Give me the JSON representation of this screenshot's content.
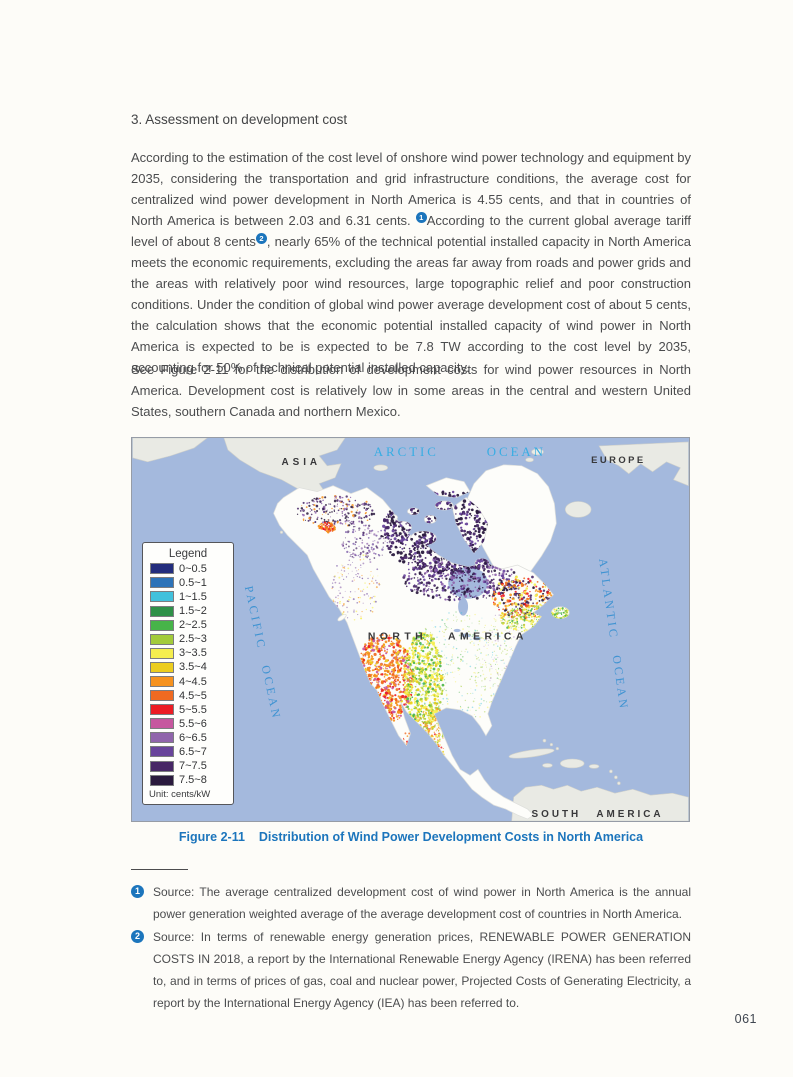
{
  "page": {
    "number": "061",
    "heading": "3. Assessment on development cost",
    "para1": {
      "seg1": "According to the estimation of the cost level of onshore wind power technology and equipment by 2035, considering the transportation and grid infrastructure conditions, the average cost for centralized wind power development in North America is 4.55 cents, and that in countries of North America is between 2.03 and 6.31 cents. ",
      "marker1": "1",
      "seg2": "According to the current global average tariff level of about 8 cents",
      "marker2": "2",
      "seg3": ", nearly 65% of the technical potential installed capacity in North America meets the economic requirements, excluding the areas far away from roads and power grids and the areas with relatively poor wind resources, large topographic relief and poor construction conditions. Under the condition of global wind power average development cost of about 5 cents, the calculation shows that the economic potential installed capacity of wind power in North America is expected to be is expected to be 7.8 TW according to the cost level by 2035, accounting for 50% of technical potential installed capacity."
    },
    "para2": "See Figure 2-11 for the distribution of development costs for wind power resources in North America. Development cost is relatively low in some areas in the central and western United States, southern Canada and northern Mexico."
  },
  "figure": {
    "caption_label": "Figure 2-11",
    "caption_title": "Distribution of Wind Power Development Costs in North America",
    "legend": {
      "title": "Legend",
      "unit": "Unit: cents/kW",
      "items": [
        {
          "range": "0~0.5",
          "color": "#232d7d"
        },
        {
          "range": "0.5~1",
          "color": "#2d73b8"
        },
        {
          "range": "1~1.5",
          "color": "#41c1dc"
        },
        {
          "range": "1.5~2",
          "color": "#2e9148"
        },
        {
          "range": "2~2.5",
          "color": "#47b449"
        },
        {
          "range": "2.5~3",
          "color": "#a3cb3a"
        },
        {
          "range": "3~3.5",
          "color": "#f5ee4e"
        },
        {
          "range": "3.5~4",
          "color": "#eccd1f"
        },
        {
          "range": "4~4.5",
          "color": "#f6921e"
        },
        {
          "range": "4.5~5",
          "color": "#ef6a21"
        },
        {
          "range": "5~5.5",
          "color": "#ec1c24"
        },
        {
          "range": "5.5~6",
          "color": "#c6579f"
        },
        {
          "range": "6~6.5",
          "color": "#9065ac"
        },
        {
          "range": "6.5~7",
          "color": "#68449b"
        },
        {
          "range": "7~7.5",
          "color": "#472766"
        },
        {
          "range": "7.5~8",
          "color": "#2a1a3e"
        }
      ]
    },
    "map_labels": {
      "asia": "ASIA",
      "europe": "EUROPE",
      "arctic_ocean": "ARCTIC OCEAN",
      "north_america": "NORTH AMERICA",
      "south_america": "SOUTH AMERICA",
      "pacific_ocean": "PACIFIC OCEAN",
      "atlantic_ocean": "ATLANTIC OCEAN"
    },
    "colors": {
      "ocean": "#a4b9dd",
      "land_other": "#e9eae4",
      "land_na": "#fdfdfa",
      "arctic_label": "#37ade3",
      "ocean_label": "#3f93d2",
      "continent_label": "#38383a"
    }
  },
  "footnotes": [
    {
      "marker": "1",
      "text": "Source: The average centralized development cost of wind power in North America is the annual power generation weighted average of the average development cost of countries in North America."
    },
    {
      "marker": "2",
      "text": "Source: In terms of renewable energy generation prices, RENEWABLE POWER GENERATION COSTS IN 2018, a report by the International Renewable Energy Agency (IRENA) has been referred to, and in terms of prices of gas, coal and nuclear power, Projected Costs of Generating Electricity, a report by the International Energy Agency (IEA) has been referred to."
    }
  ]
}
